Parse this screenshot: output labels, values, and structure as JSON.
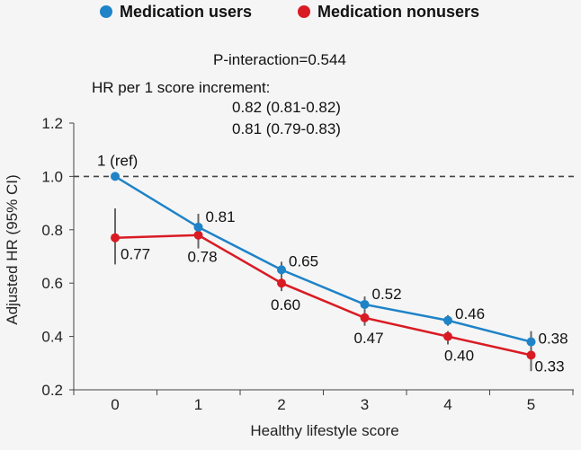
{
  "chart_data": {
    "type": "line",
    "x": [
      0,
      1,
      2,
      3,
      4,
      5
    ],
    "xlabel": "Healthy lifestyle score",
    "ylabel": "Adjusted HR (95% CI)",
    "ylim": [
      0.2,
      1.2
    ],
    "yticks": [
      "0.2",
      "0.4",
      "0.6",
      "0.8",
      "1.0",
      "1.2"
    ],
    "xticks": [
      "0",
      "1",
      "2",
      "3",
      "4",
      "5"
    ],
    "reference_line": {
      "y": 1.0,
      "style": "dashed"
    },
    "legend_position": "top",
    "series": [
      {
        "name": "Medication users",
        "color": "#1f83c7",
        "values": [
          1.0,
          0.81,
          0.65,
          0.52,
          0.46,
          0.38
        ],
        "ci_low": [
          1.0,
          0.77,
          0.62,
          0.5,
          0.44,
          0.35
        ],
        "ci_high": [
          1.0,
          0.86,
          0.68,
          0.55,
          0.48,
          0.42
        ],
        "labels": [
          "1 (ref)",
          "0.81",
          "0.65",
          "0.52",
          "0.46",
          "0.38"
        ]
      },
      {
        "name": "Medication nonusers",
        "color": "#d91b24",
        "values": [
          0.77,
          0.78,
          0.6,
          0.47,
          0.4,
          0.33
        ],
        "ci_low": [
          0.67,
          0.73,
          0.57,
          0.44,
          0.37,
          0.27
        ],
        "ci_high": [
          0.88,
          0.82,
          0.62,
          0.5,
          0.42,
          0.38
        ],
        "labels": [
          "0.77",
          "0.78",
          "0.60",
          "0.47",
          "0.40",
          "0.33"
        ]
      }
    ],
    "annotations": {
      "p_interaction": "P-interaction=0.544",
      "hr_header": "HR per 1 score increment:",
      "hr_users": "0.82 (0.81-0.82)",
      "hr_nonusers": "0.81 (0.79-0.83)"
    }
  }
}
